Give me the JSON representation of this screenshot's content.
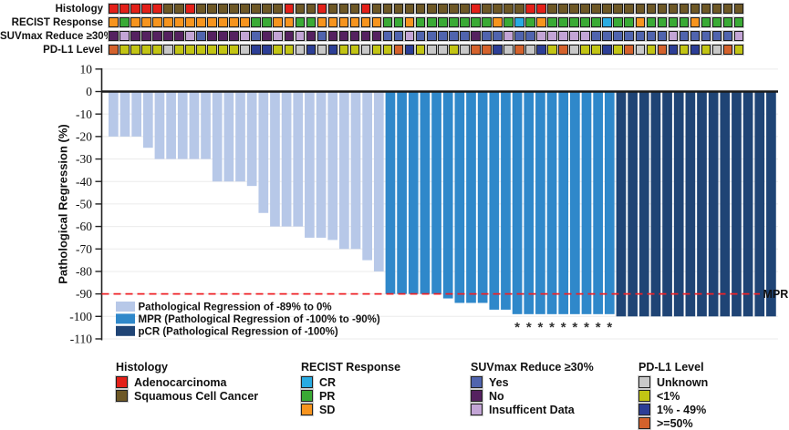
{
  "tracks": {
    "rows": [
      {
        "key": "histology",
        "label": "Histology",
        "codes": "RRRRRBBRBBBBBBBBRBBRBBBRBBBBBBBBBRBBBBRRBBBBBBBBBBBBBBBBBB"
      },
      {
        "key": "recist-response",
        "label": "RECIST Response",
        "codes": "OGOOOOOOOOOOOGGOOGGOOOOOOGGOGGGGGGGOGCGOGGGGGCGGOGGGGOGGGG"
      },
      {
        "key": "suvmax-reduce",
        "label": "SUVmax Reduce ≥30%",
        "codes": "NINNNNNIYNNNIYNININYNNNNNYYIYYYYYNYYIYYIIIIIYYYYYYYIYYYYYI"
      },
      {
        "key": "pdl1-level",
        "label": "PD-L1 Level",
        "codes": "HLLLLULLLLLLUMMLLUMUMLLULLHMLUULUHHMUHUMLHULLMLHULHMLMLUHL"
      }
    ],
    "palette": {
      "R": "#e32019",
      "B": "#6e5826",
      "O": "#f7941e",
      "G": "#3aaa35",
      "C": "#29abe2",
      "Y": "#5064ae",
      "N": "#552160",
      "I": "#c3a5d6",
      "U": "#c8c8c8",
      "L": "#c2c414",
      "M": "#2c3e96",
      "H": "#d4622c"
    }
  },
  "chart_data": {
    "type": "bar",
    "subtype": "waterfall",
    "title": "",
    "xlabel": "",
    "ylabel": "Pathological Regression (%)",
    "ylim": [
      -110,
      10
    ],
    "yticks": [
      10,
      0,
      -10,
      -20,
      -30,
      -40,
      -50,
      -60,
      -70,
      -80,
      -90,
      -100,
      -110
    ],
    "grid": "horizontal-faint",
    "values": [
      -20,
      -20,
      -20,
      -25,
      -30,
      -30,
      -30,
      -30,
      -30,
      -40,
      -40,
      -40,
      -42,
      -54,
      -60,
      -60,
      -60,
      -65,
      -65,
      -66,
      -70,
      -70,
      -75,
      -80,
      -90,
      -90,
      -90,
      -90,
      -90,
      -92,
      -94,
      -94,
      -94,
      -97,
      -97,
      -99,
      -99,
      -99,
      -99,
      -99,
      -99,
      -99,
      -99,
      -99,
      -100,
      -100,
      -100,
      -100,
      -100,
      -100,
      -100,
      -100,
      -100,
      -100,
      -100,
      -100,
      -100,
      -100
    ],
    "bar_classes": "LLLLLLLLLLLLLLLLLLLLLLLLMMMMMMMMMMMMMMMMMMMMPPPPPPPPPPPPPP",
    "star_columns": [
      36,
      37,
      38,
      39,
      40,
      41,
      42,
      43,
      44
    ],
    "star_symbol": "*",
    "class_colors": {
      "L": "#b7c8e8",
      "M": "#2f88ca",
      "P": "#1f4475"
    },
    "reference_line": {
      "value": -90,
      "label": "MPR",
      "color": "#ee2126",
      "style": "dashed"
    },
    "legend_position": "bottom-left-inside",
    "legend": [
      {
        "class": "L",
        "label": "Pathological Regression of -89% to 0%"
      },
      {
        "class": "M",
        "label": "MPR (Pathological Regression of -100% to -90%)"
      },
      {
        "class": "P",
        "label": "pCR (Pathological Regression of -100%)"
      }
    ]
  },
  "bottom_legends": [
    {
      "key": "histology",
      "title": "Histology",
      "items": [
        {
          "label": "Adenocarcinoma",
          "color": "#e32019"
        },
        {
          "label": "Squamous Cell Cancer",
          "color": "#6e5826"
        }
      ]
    },
    {
      "key": "recist-response",
      "title": "RECIST Response",
      "items": [
        {
          "label": "CR",
          "color": "#29abe2"
        },
        {
          "label": "PR",
          "color": "#3aaa35"
        },
        {
          "label": "SD",
          "color": "#f7941e"
        }
      ]
    },
    {
      "key": "suvmax-reduce",
      "title": "SUVmax Reduce ≥30%",
      "items": [
        {
          "label": "Yes",
          "color": "#5064ae"
        },
        {
          "label": "No",
          "color": "#552160"
        },
        {
          "label": "Insufficent Data",
          "color": "#c3a5d6"
        }
      ]
    },
    {
      "key": "pdl1-level",
      "title": "PD-L1 Level",
      "items": [
        {
          "label": "Unknown",
          "color": "#c8c8c8"
        },
        {
          "label": "<1%",
          "color": "#c2c414"
        },
        {
          "label": "1% - 49%",
          "color": "#2c3e96"
        },
        {
          "label": ">=50%",
          "color": "#d4622c"
        }
      ]
    }
  ]
}
